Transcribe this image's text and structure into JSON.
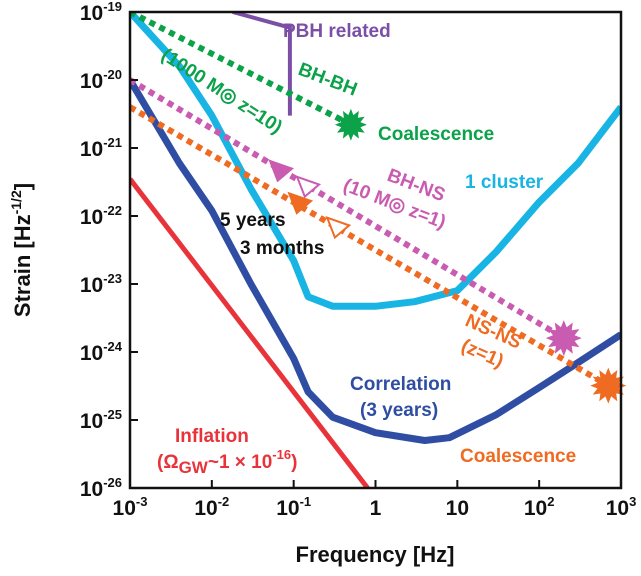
{
  "chart_data": {
    "type": "line",
    "title": "",
    "xlabel": "Frequency [Hz]",
    "ylabel": "Strain [Hz-1/2]",
    "ylabel_parts": {
      "base": "Strain [Hz",
      "exp": "-1/2",
      "close": "]"
    },
    "xscale": "log",
    "yscale": "log",
    "xlim": [
      0.001,
      1000
    ],
    "ylim": [
      1e-26,
      1e-19
    ],
    "xticks": [
      {
        "value": 0.001,
        "base": "10",
        "exp": "-3"
      },
      {
        "value": 0.01,
        "base": "10",
        "exp": "-2"
      },
      {
        "value": 0.1,
        "base": "10",
        "exp": "-1"
      },
      {
        "value": 1,
        "base": "1",
        "exp": ""
      },
      {
        "value": 10,
        "base": "10",
        "exp": ""
      },
      {
        "value": 100,
        "base": "10",
        "exp": "2"
      },
      {
        "value": 1000,
        "base": "10",
        "exp": "3"
      }
    ],
    "yticks": [
      {
        "value": 1e-19,
        "base": "10",
        "exp": "-19"
      },
      {
        "value": 1e-20,
        "base": "10",
        "exp": "-20"
      },
      {
        "value": 1e-21,
        "base": "10",
        "exp": "-21"
      },
      {
        "value": 1e-22,
        "base": "10",
        "exp": "-22"
      },
      {
        "value": 1e-23,
        "base": "10",
        "exp": "-23"
      },
      {
        "value": 1e-24,
        "base": "10",
        "exp": "-24"
      },
      {
        "value": 1e-25,
        "base": "10",
        "exp": "-25"
      },
      {
        "value": 1e-26,
        "base": "10",
        "exp": "-26"
      }
    ],
    "grid": false,
    "series": [
      {
        "key": "one_cluster",
        "style": "solid",
        "color": "#18b4e4",
        "width": 7,
        "x": [
          0.001,
          0.004,
          0.01,
          0.03,
          0.1,
          0.15,
          0.3,
          1,
          3,
          10,
          30,
          100,
          300,
          1000
        ],
        "y": [
          1e-19,
          1.6e-20,
          3e-21,
          2.5e-22,
          2.2e-23,
          6.5e-24,
          4.7e-24,
          4.7e-24,
          5.5e-24,
          8e-24,
          3e-23,
          1.6e-22,
          6e-22,
          4e-21
        ]
      },
      {
        "key": "correlation",
        "style": "solid",
        "color": "#2f4ea3",
        "width": 7,
        "x": [
          0.001,
          0.004,
          0.01,
          0.03,
          0.1,
          0.15,
          0.3,
          1,
          4,
          8,
          30,
          100,
          300,
          1000
        ],
        "y": [
          1e-20,
          6e-22,
          1.2e-22,
          1e-23,
          8e-25,
          2.6e-25,
          1.1e-25,
          6.5e-26,
          5e-26,
          5.5e-26,
          1.2e-25,
          3e-25,
          7e-25,
          1.8e-24
        ]
      },
      {
        "key": "inflation",
        "style": "solid",
        "color": "#e8333a",
        "width": 5,
        "x": [
          0.001,
          0.8
        ],
        "y": [
          3.5e-22,
          1e-26
        ]
      },
      {
        "key": "pbh",
        "style": "solid",
        "color": "#7b4fa5",
        "width": 4,
        "x": [
          0.018,
          0.085,
          0.09,
          0.09
        ],
        "y": [
          1e-19,
          6e-20,
          6e-20,
          3e-21
        ]
      },
      {
        "key": "bh_bh",
        "style": "dotted",
        "color": "#0ba24a",
        "width": 6,
        "x": [
          0.001,
          0.5
        ],
        "y": [
          1e-19,
          2.2e-21
        ]
      },
      {
        "key": "bh_ns",
        "style": "dotted",
        "color": "#c95bb0",
        "width": 6,
        "x": [
          0.001,
          200
        ],
        "y": [
          1e-20,
          1.6e-24
        ]
      },
      {
        "key": "ns_ns",
        "style": "dotted",
        "color": "#ef6b22",
        "width": 6,
        "x": [
          0.001,
          700
        ],
        "y": [
          4e-21,
          3.2e-25
        ]
      }
    ],
    "markers": [
      {
        "key": "bh_bh_coalescence",
        "shape": "star",
        "color": "#0ba24a",
        "x": 0.5,
        "y": 2.2e-21,
        "r": 16
      },
      {
        "key": "bh_ns_coalescence",
        "shape": "star",
        "color": "#c95bb0",
        "x": 200,
        "y": 1.6e-24,
        "r": 18
      },
      {
        "key": "ns_ns_coalescence",
        "shape": "star",
        "color": "#ef6b22",
        "x": 700,
        "y": 3.2e-25,
        "r": 18
      },
      {
        "key": "bh_ns_5years",
        "shape": "triangle",
        "fill": "#c95bb0",
        "x": 0.07,
        "y": 4.8e-22
      },
      {
        "key": "bh_ns_3months",
        "shape": "triangle",
        "fill": "none",
        "stroke": "#c95bb0",
        "x": 0.15,
        "y": 2.8e-22
      },
      {
        "key": "ns_ns_5years",
        "shape": "triangle",
        "fill": "#ef6b22",
        "x": 0.12,
        "y": 1.6e-22
      },
      {
        "key": "ns_ns_3months",
        "shape": "triangle",
        "fill": "none",
        "stroke": "#ef6b22",
        "x": 0.35,
        "y": 7e-23
      }
    ],
    "annotations": {
      "pbh_related": {
        "text": "PBH related",
        "color": "#7b4fa5"
      },
      "bh_bh_label": {
        "text": "BH-BH",
        "color": "#0ba24a"
      },
      "bh_bh_params": {
        "text": "(1000 M◎ z=10)",
        "color": "#0ba24a"
      },
      "coalescence_green": {
        "text": "Coalescence",
        "color": "#0ba24a"
      },
      "one_cluster_label": {
        "text": "1 cluster",
        "color": "#18b4e4"
      },
      "bh_ns_label": {
        "text": "BH-NS",
        "color": "#c95bb0"
      },
      "bh_ns_params": {
        "text": "(10 M◎ z=1)",
        "color": "#c95bb0"
      },
      "five_years": {
        "text": "5 years",
        "color": "#111111"
      },
      "three_months": {
        "text": "3 months",
        "color": "#111111"
      },
      "ns_ns_label": {
        "text": "NS-NS",
        "color": "#ef6b22"
      },
      "ns_ns_params": {
        "text": "(z=1)",
        "color": "#ef6b22"
      },
      "correlation_label": {
        "text": "Correlation",
        "color": "#2f4ea3"
      },
      "correlation_params": {
        "text": "(3 years)",
        "color": "#2f4ea3"
      },
      "inflation_label": {
        "text": "Inflation",
        "color": "#e8333a"
      },
      "inflation_params": {
        "text": "(Ω",
        "sub": "GW",
        "rest": "~1 × 10",
        "exp": "-16",
        "close": ")",
        "color": "#e8333a"
      },
      "coalescence_orange": {
        "text": "Coalescence",
        "color": "#ef6b22"
      }
    }
  }
}
